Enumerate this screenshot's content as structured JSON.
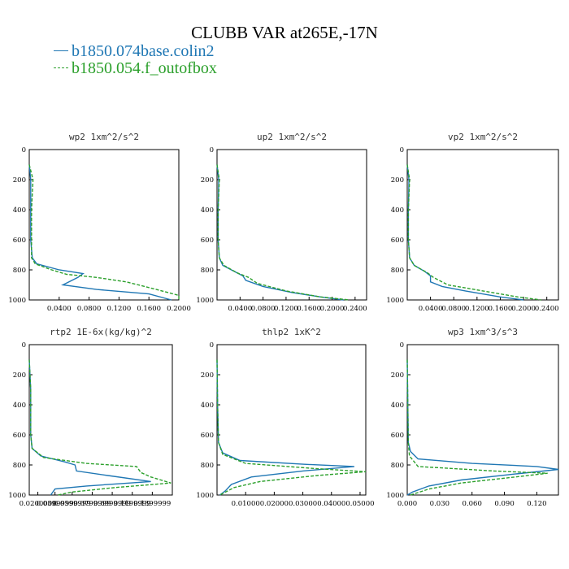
{
  "header": {
    "title": "CLUBB VAR at265E,-17N"
  },
  "legend": [
    {
      "name": "b1850.074base.colin2",
      "color": "#1f77b4",
      "style": "solid"
    },
    {
      "name": "b1850.054.f_outofbox",
      "color": "#2ca02c",
      "style": "dashed"
    }
  ],
  "chart_data": [
    {
      "type": "line",
      "title": "wp2   1xm^2/s^2",
      "ylim": [
        1000,
        0
      ],
      "xlim": [
        0,
        0.2
      ],
      "yticks": [
        "0",
        "200",
        "400",
        "600",
        "800",
        "1000"
      ],
      "xticks": [
        "0.0400",
        "0.0800",
        "0.1200",
        "0.1600",
        "0.2000"
      ],
      "series": [
        {
          "name": "b1850.074base.colin2",
          "points": [
            [
              0,
              100
            ],
            [
              0.002,
              200
            ],
            [
              0.002,
              400
            ],
            [
              0.002,
              600
            ],
            [
              0.004,
              720
            ],
            [
              0.01,
              760
            ],
            [
              0.04,
              800
            ],
            [
              0.072,
              825
            ],
            [
              0.065,
              850
            ],
            [
              0.045,
              900
            ],
            [
              0.09,
              930
            ],
            [
              0.16,
              960
            ],
            [
              0.19,
              1000
            ]
          ]
        },
        {
          "name": "b1850.054.f_outofbox",
          "points": [
            [
              0,
              100
            ],
            [
              0.005,
              200
            ],
            [
              0.003,
              400
            ],
            [
              0.003,
              600
            ],
            [
              0.003,
              720
            ],
            [
              0.008,
              760
            ],
            [
              0.03,
              800
            ],
            [
              0.05,
              830
            ],
            [
              0.09,
              850
            ],
            [
              0.13,
              880
            ],
            [
              0.17,
              930
            ],
            [
              0.2,
              970
            ],
            [
              0.2,
              1000
            ]
          ]
        }
      ]
    },
    {
      "type": "line",
      "title": "up2   1xm^2/s^2",
      "ylim": [
        1000,
        0
      ],
      "xlim": [
        0,
        0.26
      ],
      "yticks": [
        "0",
        "200",
        "400",
        "600",
        "800",
        "1000"
      ],
      "xticks": [
        "0.0400",
        "0.0800",
        "0.1200",
        "0.1600",
        "0.2000",
        "0.2400"
      ],
      "series": [
        {
          "name": "b1850.074base.colin2",
          "points": [
            [
              0,
              100
            ],
            [
              0.003,
              200
            ],
            [
              0.002,
              400
            ],
            [
              0.002,
              600
            ],
            [
              0.004,
              720
            ],
            [
              0.01,
              770
            ],
            [
              0.03,
              810
            ],
            [
              0.045,
              840
            ],
            [
              0.05,
              870
            ],
            [
              0.08,
              910
            ],
            [
              0.13,
              950
            ],
            [
              0.18,
              980
            ],
            [
              0.22,
              1000
            ]
          ]
        },
        {
          "name": "b1850.054.f_outofbox",
          "points": [
            [
              0,
              100
            ],
            [
              0.004,
              200
            ],
            [
              0.002,
              400
            ],
            [
              0.002,
              600
            ],
            [
              0.004,
              720
            ],
            [
              0.012,
              770
            ],
            [
              0.035,
              820
            ],
            [
              0.055,
              850
            ],
            [
              0.07,
              890
            ],
            [
              0.12,
              940
            ],
            [
              0.18,
              980
            ],
            [
              0.23,
              1000
            ]
          ]
        }
      ]
    },
    {
      "type": "line",
      "title": "vp2   1xm^2/s^2",
      "ylim": [
        1000,
        0
      ],
      "xlim": [
        0,
        0.26
      ],
      "yticks": [
        "0",
        "200",
        "400",
        "600",
        "800",
        "1000"
      ],
      "xticks": [
        "0.0400",
        "0.0800",
        "0.1200",
        "0.1600",
        "0.2000",
        "0.2400"
      ],
      "series": [
        {
          "name": "b1850.074base.colin2",
          "points": [
            [
              0,
              100
            ],
            [
              0.003,
              200
            ],
            [
              0.002,
              400
            ],
            [
              0.002,
              600
            ],
            [
              0.004,
              720
            ],
            [
              0.012,
              770
            ],
            [
              0.03,
              810
            ],
            [
              0.04,
              840
            ],
            [
              0.04,
              880
            ],
            [
              0.06,
              910
            ],
            [
              0.1,
              940
            ],
            [
              0.16,
              980
            ],
            [
              0.2,
              1000
            ]
          ]
        },
        {
          "name": "b1850.054.f_outofbox",
          "points": [
            [
              0,
              100
            ],
            [
              0.004,
              200
            ],
            [
              0.002,
              400
            ],
            [
              0.002,
              600
            ],
            [
              0.004,
              720
            ],
            [
              0.012,
              770
            ],
            [
              0.035,
              820
            ],
            [
              0.045,
              850
            ],
            [
              0.07,
              900
            ],
            [
              0.13,
              940
            ],
            [
              0.19,
              980
            ],
            [
              0.23,
              1000
            ]
          ]
        }
      ]
    },
    {
      "type": "line",
      "title": "rtp2   1E-6x(kg/kg)^2",
      "ylim": [
        1000,
        0
      ],
      "xlim": [
        0,
        1
      ],
      "yticks": [
        "0",
        "200",
        "400",
        "600",
        "800",
        "1000"
      ],
      "xticks": [
        "0.0200000",
        "0.0399999",
        "0.0599999",
        "0.0799999",
        "0.0999999",
        "0.1199999",
        "0.1399999"
      ],
      "series": [
        {
          "name": "b1850.074base.colin2",
          "points": [
            [
              0,
              100
            ],
            [
              0.01,
              300
            ],
            [
              0.01,
              600
            ],
            [
              0.02,
              690
            ],
            [
              0.08,
              740
            ],
            [
              0.25,
              780
            ],
            [
              0.32,
              800
            ],
            [
              0.33,
              840
            ],
            [
              0.55,
              870
            ],
            [
              0.85,
              910
            ],
            [
              0.4,
              940
            ],
            [
              0.18,
              960
            ],
            [
              0.15,
              1000
            ]
          ]
        },
        {
          "name": "b1850.054.f_outofbox",
          "points": [
            [
              0,
              100
            ],
            [
              0.01,
              300
            ],
            [
              0.01,
              600
            ],
            [
              0.02,
              690
            ],
            [
              0.1,
              750
            ],
            [
              0.4,
              790
            ],
            [
              0.75,
              810
            ],
            [
              0.78,
              850
            ],
            [
              0.85,
              880
            ],
            [
              0.99,
              920
            ],
            [
              0.6,
              950
            ],
            [
              0.3,
              980
            ],
            [
              0.2,
              1000
            ]
          ]
        }
      ]
    },
    {
      "type": "line",
      "title": "thlp2   1xK^2",
      "ylim": [
        1000,
        0
      ],
      "xlim": [
        0,
        0.052
      ],
      "yticks": [
        "0",
        "200",
        "400",
        "600",
        "800",
        "1000"
      ],
      "xticks": [
        "0.01000",
        "0.02000",
        "0.03000",
        "0.04000",
        "0.05000"
      ],
      "series": [
        {
          "name": "b1850.074base.colin2",
          "points": [
            [
              0,
              100
            ],
            [
              0.0002,
              400
            ],
            [
              0.0005,
              650
            ],
            [
              0.002,
              720
            ],
            [
              0.008,
              770
            ],
            [
              0.03,
              795
            ],
            [
              0.048,
              810
            ],
            [
              0.03,
              840
            ],
            [
              0.012,
              880
            ],
            [
              0.005,
              930
            ],
            [
              0.003,
              970
            ],
            [
              0.001,
              1000
            ]
          ]
        },
        {
          "name": "b1850.054.f_outofbox",
          "points": [
            [
              0,
              100
            ],
            [
              0.0002,
              400
            ],
            [
              0.0005,
              650
            ],
            [
              0.002,
              730
            ],
            [
              0.01,
              790
            ],
            [
              0.035,
              825
            ],
            [
              0.052,
              845
            ],
            [
              0.035,
              870
            ],
            [
              0.015,
              910
            ],
            [
              0.006,
              950
            ],
            [
              0.002,
              990
            ],
            [
              0.001,
              1000
            ]
          ]
        }
      ]
    },
    {
      "type": "line",
      "title": "wp3   1xm^3/s^3",
      "ylim": [
        1000,
        0
      ],
      "xlim": [
        0,
        0.14
      ],
      "yticks": [
        "0",
        "200",
        "400",
        "600",
        "800",
        "1000"
      ],
      "xticks": [
        "0.000",
        "0.030",
        "0.060",
        "0.090",
        "0.120"
      ],
      "series": [
        {
          "name": "b1850.074base.colin2",
          "points": [
            [
              0,
              100
            ],
            [
              0.0005,
              400
            ],
            [
              0.001,
              650
            ],
            [
              0.003,
              710
            ],
            [
              0.01,
              760
            ],
            [
              0.06,
              790
            ],
            [
              0.12,
              810
            ],
            [
              0.14,
              830
            ],
            [
              0.1,
              860
            ],
            [
              0.05,
              900
            ],
            [
              0.02,
              940
            ],
            [
              0.005,
              980
            ],
            [
              0,
              1000
            ]
          ]
        },
        {
          "name": "b1850.054.f_outofbox",
          "points": [
            [
              0,
              100
            ],
            [
              0.0005,
              400
            ],
            [
              0.001,
              650
            ],
            [
              0.002,
              740
            ],
            [
              0.01,
              810
            ],
            [
              0.08,
              840
            ],
            [
              0.13,
              855
            ],
            [
              0.1,
              880
            ],
            [
              0.05,
              920
            ],
            [
              0.02,
              960
            ],
            [
              0.003,
              1000
            ]
          ]
        }
      ]
    }
  ]
}
